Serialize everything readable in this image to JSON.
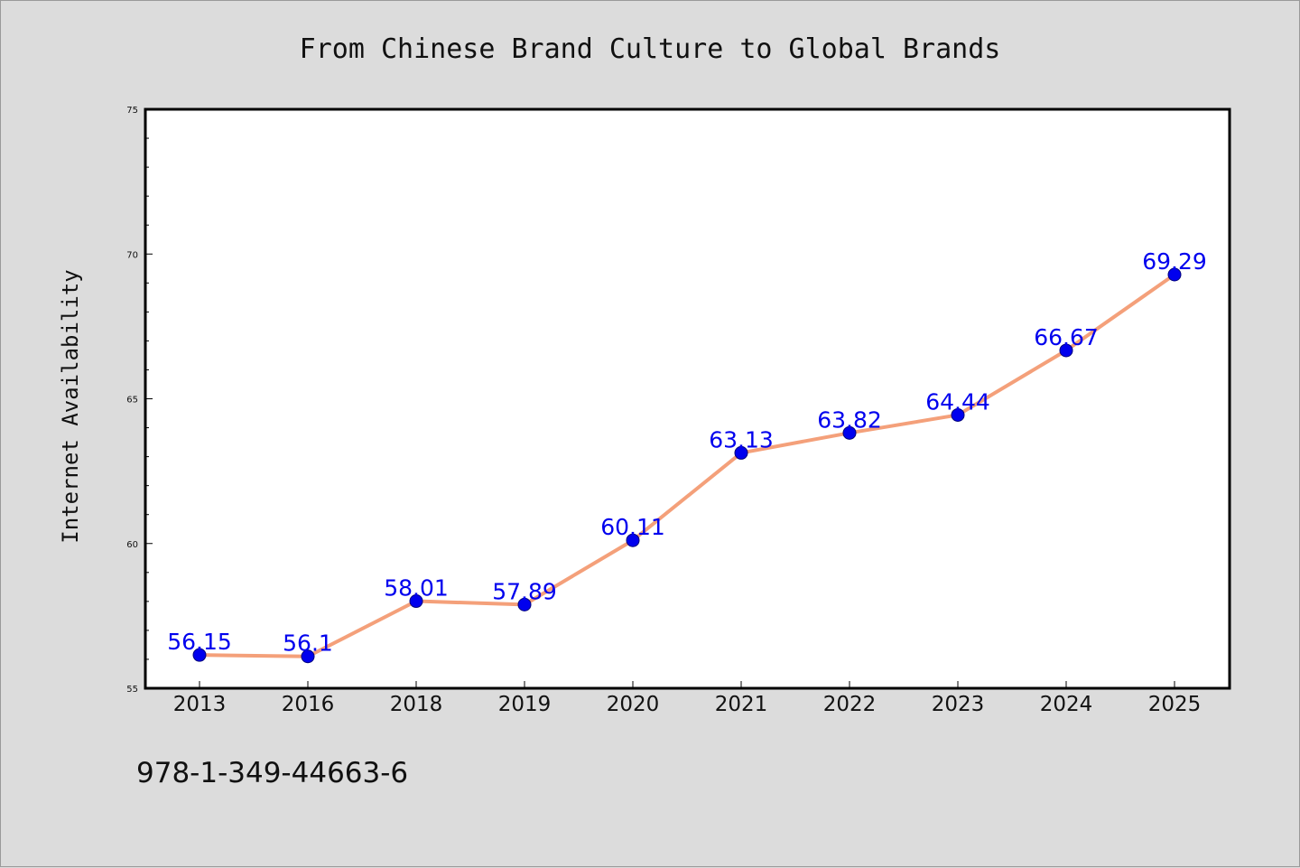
{
  "chart_data": {
    "type": "line",
    "title": "From Chinese Brand Culture to Global Brands",
    "xlabel": "",
    "ylabel": "Internet Availability",
    "categories": [
      "2013",
      "2016",
      "2018",
      "2019",
      "2020",
      "2021",
      "2022",
      "2023",
      "2024",
      "2025"
    ],
    "series": [
      {
        "values": [
          56.15,
          56.1,
          58.01,
          57.89,
          60.11,
          63.13,
          63.82,
          64.44,
          66.67,
          69.29
        ],
        "data_labels": [
          "56.15",
          "56.1",
          "58.01",
          "57.89",
          "60.11",
          "63.13",
          "63.82",
          "64.44",
          "66.67",
          "69.29"
        ],
        "line_color": "#f4a07a",
        "marker_color": "#0000ee"
      }
    ],
    "ylim": [
      55,
      75
    ],
    "yticks": [
      "55",
      "60",
      "65",
      "70",
      "75"
    ],
    "grid": false,
    "legend": "none"
  },
  "footer": {
    "isbn": "978-1-349-44663-6"
  }
}
